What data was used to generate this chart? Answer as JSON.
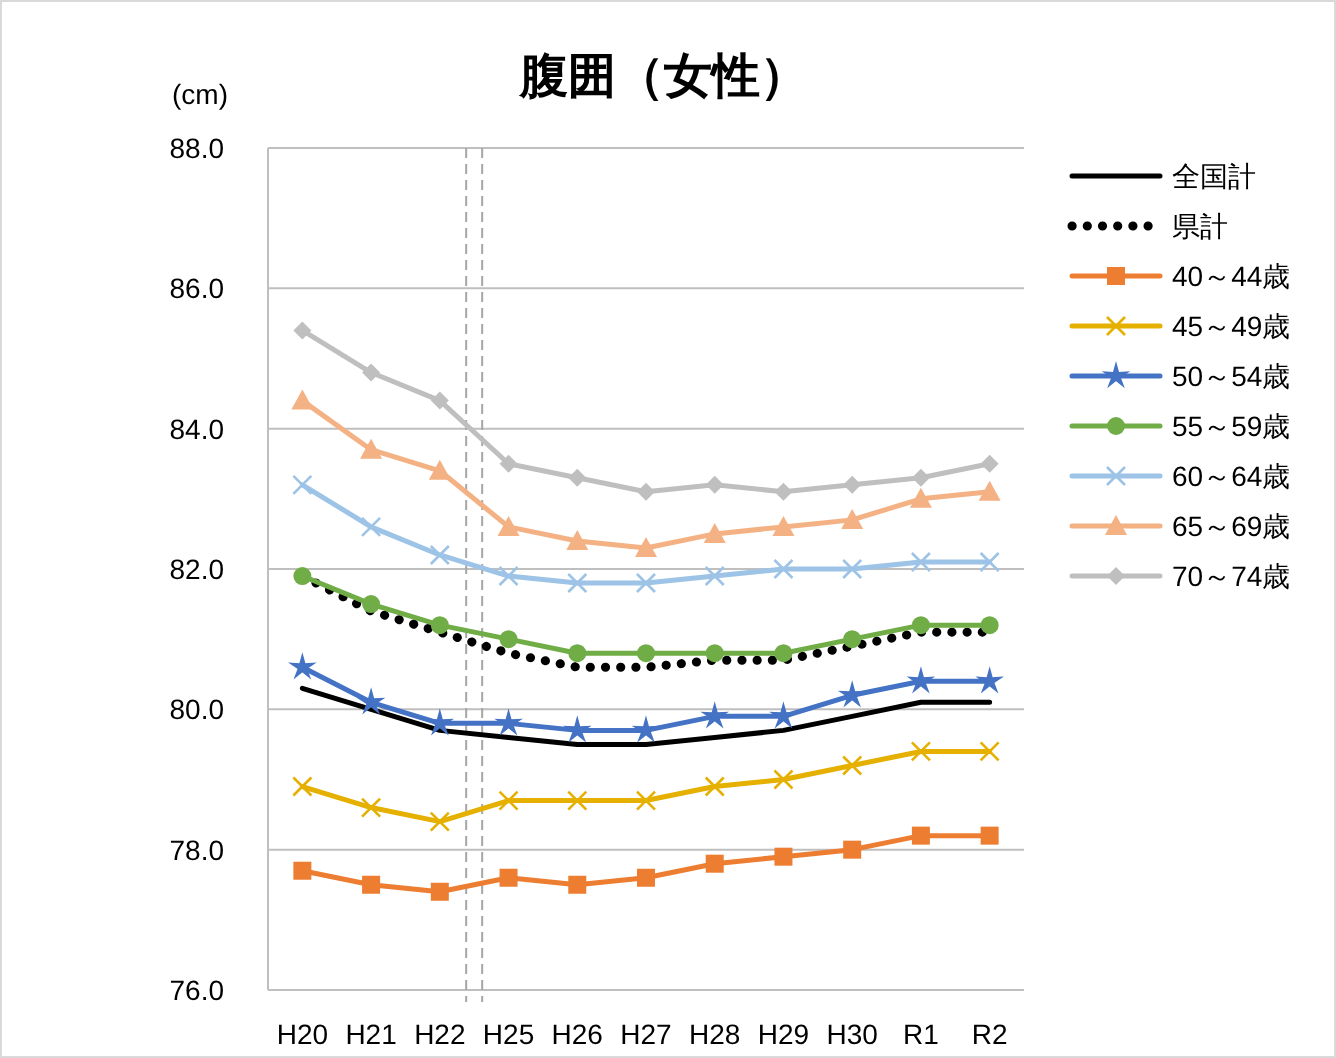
{
  "chart_data": {
    "type": "line",
    "title": "腹囲（女性）",
    "ylabel": "(cm)",
    "categories": [
      "H20",
      "H21",
      "H22",
      "H25",
      "H26",
      "H27",
      "H28",
      "H29",
      "H30",
      "R1",
      "R2"
    ],
    "ylim": [
      76,
      88
    ],
    "yticks": [
      {
        "value": 76,
        "label": "76.0"
      },
      {
        "value": 78,
        "label": "78.0"
      },
      {
        "value": 80,
        "label": "80.0"
      },
      {
        "value": 82,
        "label": "82.0"
      },
      {
        "value": 84,
        "label": "84.0"
      },
      {
        "value": 86,
        "label": "86.0"
      },
      {
        "value": 88,
        "label": "88.0"
      }
    ],
    "grid": "y",
    "legend": "right",
    "series": [
      {
        "name": "全国計",
        "color": "#000000",
        "marker": "none",
        "line_style": "solid",
        "values": [
          80.3,
          80.0,
          79.7,
          79.6,
          79.5,
          79.5,
          79.6,
          79.7,
          79.9,
          80.1,
          80.1
        ]
      },
      {
        "name": "県計",
        "color": "#000000",
        "marker": "none",
        "line_style": "dotted",
        "values": [
          81.9,
          81.4,
          81.1,
          80.8,
          80.6,
          80.6,
          80.7,
          80.7,
          80.9,
          81.1,
          81.1
        ]
      },
      {
        "name": "40～44歳",
        "color": "#ed7d31",
        "marker": "square",
        "line_style": "solid",
        "values": [
          77.7,
          77.5,
          77.4,
          77.6,
          77.5,
          77.6,
          77.8,
          77.9,
          78.0,
          78.2,
          78.2
        ]
      },
      {
        "name": "45～49歳",
        "color": "#e5b000",
        "marker": "cross",
        "line_style": "solid",
        "values": [
          78.9,
          78.6,
          78.4,
          78.7,
          78.7,
          78.7,
          78.9,
          79.0,
          79.2,
          79.4,
          79.4
        ]
      },
      {
        "name": "50～54歳",
        "color": "#4472c4",
        "marker": "star",
        "line_style": "solid",
        "values": [
          80.6,
          80.1,
          79.8,
          79.8,
          79.7,
          79.7,
          79.9,
          79.9,
          80.2,
          80.4,
          80.4
        ]
      },
      {
        "name": "55～59歳",
        "color": "#70ad47",
        "marker": "circle",
        "line_style": "solid",
        "values": [
          81.9,
          81.5,
          81.2,
          81.0,
          80.8,
          80.8,
          80.8,
          80.8,
          81.0,
          81.2,
          81.2
        ]
      },
      {
        "name": "60～64歳",
        "color": "#9dc3e6",
        "marker": "cross",
        "line_style": "solid",
        "values": [
          83.2,
          82.6,
          82.2,
          81.9,
          81.8,
          81.8,
          81.9,
          82.0,
          82.0,
          82.1,
          82.1
        ]
      },
      {
        "name": "65～69歳",
        "color": "#f4b183",
        "marker": "triangle",
        "line_style": "solid",
        "values": [
          84.4,
          83.7,
          83.4,
          82.6,
          82.4,
          82.3,
          82.5,
          82.6,
          82.7,
          83.0,
          83.1
        ]
      },
      {
        "name": "70～74歳",
        "color": "#bfbfbf",
        "marker": "diamond",
        "line_style": "solid",
        "values": [
          85.4,
          84.8,
          84.4,
          83.5,
          83.3,
          83.1,
          83.2,
          83.1,
          83.2,
          83.3,
          83.5
        ]
      }
    ]
  }
}
